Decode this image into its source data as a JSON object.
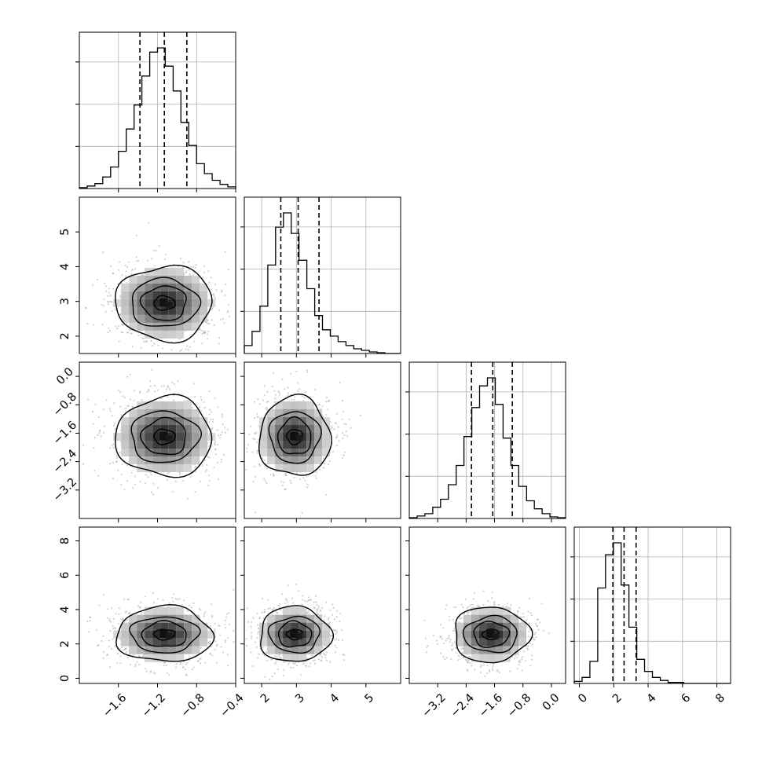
{
  "chart_data": {
    "type": "corner",
    "parameters": 4,
    "quantile_lines": "dashed",
    "grid": true,
    "params": [
      {
        "range": [
          -2.0,
          -0.4
        ],
        "ticks": [
          -1.6,
          -1.2,
          -0.8,
          -0.4
        ],
        "tick_labels": [
          "−1.6",
          "−1.2",
          "−0.8",
          "−0.4"
        ],
        "quantiles": [
          -1.38,
          -1.13,
          -0.9
        ],
        "center": -1.13,
        "sd": 0.24
      },
      {
        "range": [
          1.5,
          6.0
        ],
        "ticks": [
          2,
          3,
          4,
          5
        ],
        "tick_labels": [
          "2",
          "3",
          "4",
          "5"
        ],
        "quantiles": [
          2.55,
          3.05,
          3.65
        ],
        "center": 2.95,
        "sd": 0.5
      },
      {
        "range": [
          -4.0,
          0.4
        ],
        "ticks": [
          -3.2,
          -2.4,
          -1.6,
          -0.8,
          0.0
        ],
        "tick_labels": [
          "−3.2",
          "−2.4",
          "−1.6",
          "−0.8",
          "0.0"
        ],
        "quantiles": [
          -2.25,
          -1.65,
          -1.1
        ],
        "center": -1.7,
        "sd": 0.52
      },
      {
        "range": [
          -0.3,
          8.8
        ],
        "ticks": [
          0,
          2,
          4,
          6,
          8
        ],
        "tick_labels": [
          "0",
          "2",
          "4",
          "6",
          "8"
        ],
        "quantiles": [
          1.95,
          2.6,
          3.3
        ],
        "center": 2.55,
        "sd": 0.75
      }
    ],
    "hist_bins": 20,
    "hist_counts": [
      [
        1,
        3,
        6,
        14,
        26,
        45,
        72,
        101,
        136,
        165,
        170,
        148,
        118,
        80,
        52,
        30,
        18,
        10,
        5,
        2
      ],
      [
        10,
        28,
        60,
        112,
        160,
        178,
        152,
        118,
        82,
        48,
        30,
        22,
        15,
        10,
        6,
        4,
        2,
        1,
        0,
        0
      ],
      [
        1,
        3,
        6,
        14,
        24,
        42,
        66,
        102,
        138,
        165,
        175,
        142,
        100,
        66,
        40,
        22,
        12,
        6,
        2,
        1
      ],
      [
        2,
        6,
        22,
        95,
        128,
        140,
        98,
        56,
        24,
        12,
        6,
        3,
        1,
        1,
        0,
        0,
        0,
        0,
        0,
        0
      ]
    ]
  }
}
